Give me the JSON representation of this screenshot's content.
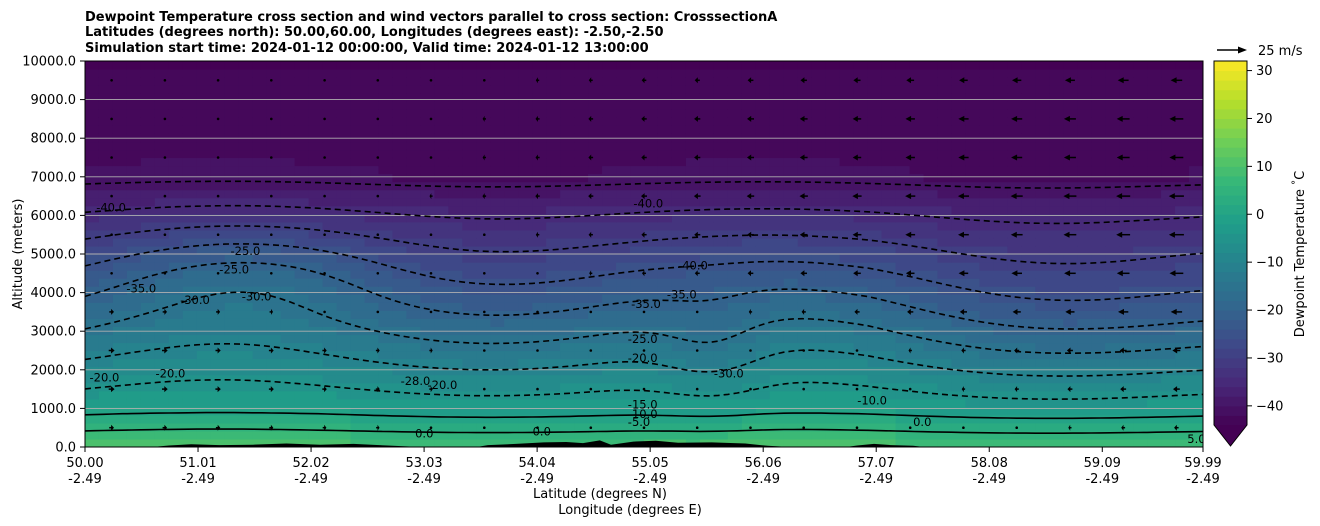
{
  "chart_data": {
    "type": "heatmap",
    "title_lines": [
      "Dewpoint Temperature cross section and wind vectors parallel to cross section: CrosssectionA",
      "Latitudes (degrees north): 50.00,60.00, Longitudes (degrees east): -2.50,-2.50",
      "Simulation start time: 2024-01-12 00:00:00, Valid time: 2024-01-12 13:00:00"
    ],
    "xlabel": "Latitude (degrees N)",
    "xlabel2": "Longitude (degrees E)",
    "ylabel": "Altitude (meters)",
    "x_ticks": [
      {
        "lat": "50.00",
        "lon": "-2.49"
      },
      {
        "lat": "51.01",
        "lon": "-2.49"
      },
      {
        "lat": "52.02",
        "lon": "-2.49"
      },
      {
        "lat": "53.03",
        "lon": "-2.49"
      },
      {
        "lat": "54.04",
        "lon": "-2.49"
      },
      {
        "lat": "55.05",
        "lon": "-2.49"
      },
      {
        "lat": "56.06",
        "lon": "-2.49"
      },
      {
        "lat": "57.07",
        "lon": "-2.49"
      },
      {
        "lat": "58.08",
        "lon": "-2.49"
      },
      {
        "lat": "59.09",
        "lon": "-2.49"
      },
      {
        "lat": "59.99",
        "lon": "-2.49"
      }
    ],
    "y_ticks": [
      "0.0",
      "1000.0",
      "2000.0",
      "3000.0",
      "4000.0",
      "5000.0",
      "6000.0",
      "7000.0",
      "8000.0",
      "9000.0",
      "10000.0"
    ],
    "ylim": [
      0,
      10000
    ],
    "xlim": [
      50.0,
      59.99
    ],
    "grid": "horizontal",
    "colorbar": {
      "label": "Dewpoint Temperature $^\\circ$C",
      "ticks": [
        -40,
        -30,
        -20,
        -10,
        0,
        10,
        20,
        30
      ],
      "tick_labels": [
        "−40",
        "−30",
        "−20",
        "−10",
        "0",
        "10",
        "20",
        "30"
      ],
      "range": [
        -44,
        32
      ],
      "extend": "min",
      "colormap": "viridis"
    },
    "quiver_key": {
      "label": "25 m/s",
      "speed": 25
    },
    "contour_labels": [
      {
        "text": "-40.0",
        "x": 50.1,
        "y": 6100
      },
      {
        "text": "-35.0",
        "x": 50.37,
        "y": 4000
      },
      {
        "text": "-25.0",
        "x": 51.3,
        "y": 4980
      },
      {
        "text": "-25.0",
        "x": 51.2,
        "y": 4500
      },
      {
        "text": "-30.0",
        "x": 50.85,
        "y": 3700
      },
      {
        "text": "-30.0",
        "x": 51.4,
        "y": 3800
      },
      {
        "text": "-40.0",
        "x": 54.9,
        "y": 6200
      },
      {
        "text": "-40.0",
        "x": 55.3,
        "y": 4600
      },
      {
        "text": "-35.0",
        "x": 54.88,
        "y": 3600
      },
      {
        "text": "-35.0",
        "x": 55.2,
        "y": 3850
      },
      {
        "text": "-25.0",
        "x": 54.85,
        "y": 2700
      },
      {
        "text": "-20.0",
        "x": 54.85,
        "y": 2200
      },
      {
        "text": "-20.0",
        "x": 50.63,
        "y": 1800
      },
      {
        "text": "-20.0",
        "x": 53.06,
        "y": 1500
      },
      {
        "text": "-28.0",
        "x": 52.82,
        "y": 1600
      },
      {
        "text": "-30.0",
        "x": 55.62,
        "y": 1800
      },
      {
        "text": "-20.0",
        "x": 50.04,
        "y": 1700
      },
      {
        "text": "-15.0",
        "x": 54.85,
        "y": 1000
      },
      {
        "text": "-10.0",
        "x": 54.85,
        "y": 750
      },
      {
        "text": "-10.0",
        "x": 56.9,
        "y": 1100
      },
      {
        "text": "-5.0",
        "x": 54.85,
        "y": 550
      },
      {
        "text": "0.0",
        "x": 52.95,
        "y": 250
      },
      {
        "text": "0.0",
        "x": 54.0,
        "y": 300
      },
      {
        "text": "0.0",
        "x": 57.4,
        "y": 550
      },
      {
        "text": "5.0",
        "x": 59.85,
        "y": 100
      }
    ],
    "wind_profile": [
      {
        "y": 9500,
        "u_south": 0.0,
        "u_north": -10.0
      },
      {
        "y": 8500,
        "u_south": 0.0,
        "u_north": -12.0
      },
      {
        "y": 7500,
        "u_south": 0.0,
        "u_north": -12.0
      },
      {
        "y": 6500,
        "u_south": 0.0,
        "u_north": -13.0
      },
      {
        "y": 5500,
        "u_south": 1.0,
        "u_north": -13.0
      },
      {
        "y": 4500,
        "u_south": 2.0,
        "u_north": -12.0
      },
      {
        "y": 3500,
        "u_south": 4.0,
        "u_north": -10.0
      },
      {
        "y": 2500,
        "u_south": 5.0,
        "u_north": -7.0
      },
      {
        "y": 1500,
        "u_south": 5.0,
        "u_north": -6.0
      },
      {
        "y": 500,
        "u_south": 4.0,
        "u_north": -4.0
      }
    ]
  }
}
